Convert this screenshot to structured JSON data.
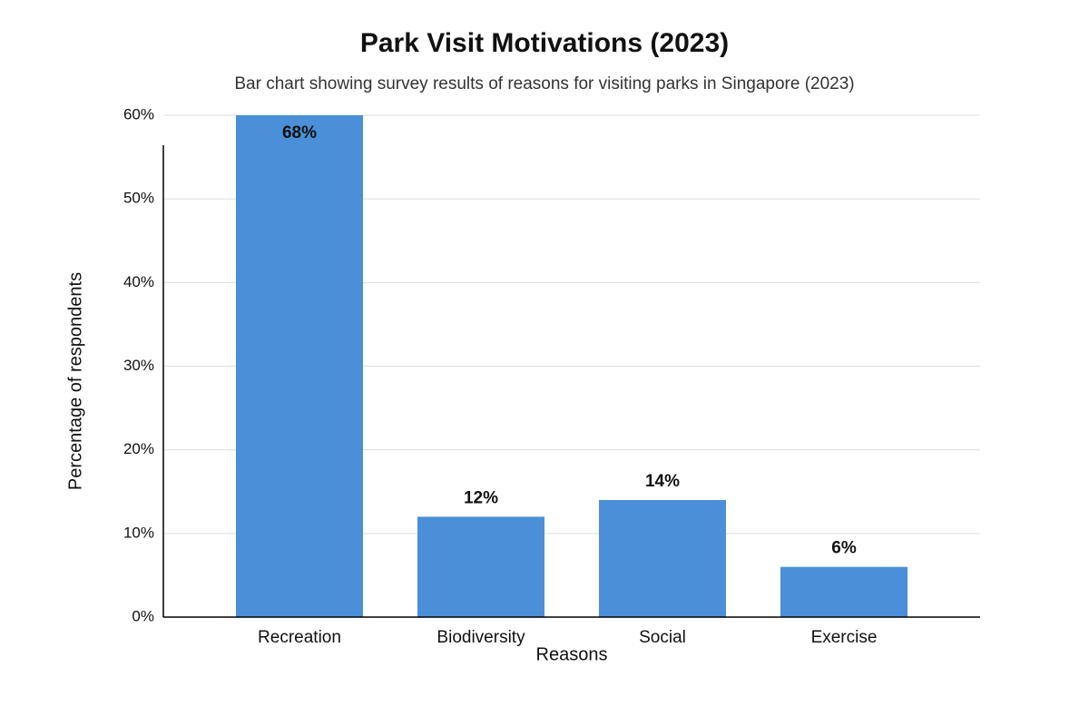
{
  "chart_data": {
    "type": "bar",
    "title": "Park Visit Motivations (2023)",
    "subtitle": "Bar chart showing survey results of reasons for visiting parks in Singapore (2023)",
    "x_label": "Reasons",
    "y_label": "Percentage of respondents",
    "categories": [
      "Recreation",
      "Biodiversity",
      "Social",
      "Exercise"
    ],
    "values": [
      68,
      12,
      14,
      6
    ],
    "value_labels": [
      "68%",
      "12%",
      "14%",
      "6%"
    ],
    "color": "#4a8fd8",
    "ylim": [
      0,
      60
    ],
    "yticks": [
      {
        "value": 0,
        "label": "0%"
      },
      {
        "value": 10,
        "label": "10%"
      },
      {
        "value": 20,
        "label": "20%"
      },
      {
        "value": 30,
        "label": "30%"
      },
      {
        "value": 40,
        "label": "40%"
      },
      {
        "value": 50,
        "label": "50%"
      },
      {
        "value": 60,
        "label": "60%"
      }
    ],
    "grid": true
  }
}
